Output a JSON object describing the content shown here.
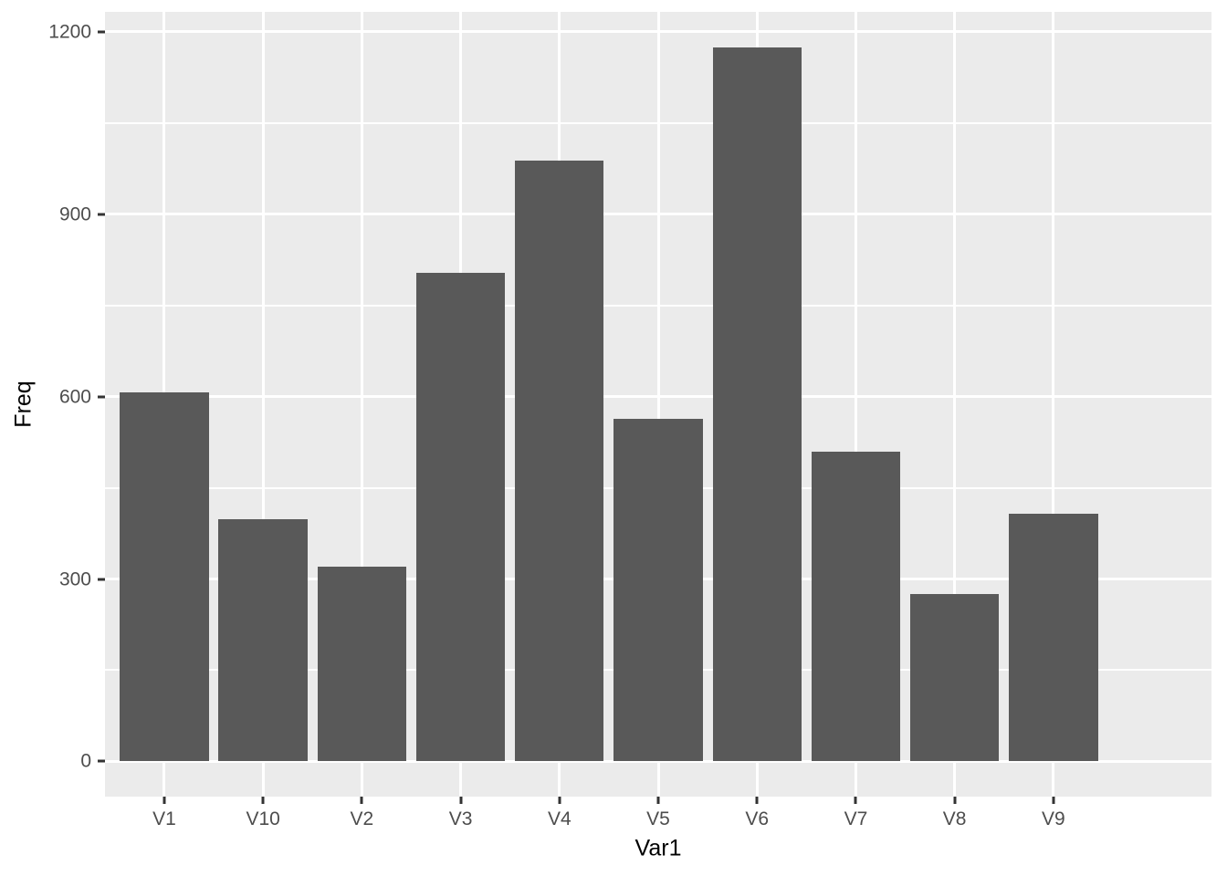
{
  "chart_data": {
    "type": "bar",
    "title": "",
    "categories": [
      "V1",
      "V10",
      "V2",
      "V3",
      "V4",
      "V5",
      "V6",
      "V7",
      "V8",
      "V9"
    ],
    "values": [
      607,
      399,
      321,
      803,
      989,
      563,
      1174,
      510,
      276,
      408
    ],
    "xlabel": "Var1",
    "ylabel": "Freq",
    "y_ticks": [
      0,
      300,
      600,
      900,
      1200
    ],
    "y_tick_labels": [
      "0",
      "300",
      "600",
      "900",
      "1200"
    ],
    "y_minor": [
      150,
      450,
      750,
      1050
    ],
    "ylim": [
      -58,
      1233
    ],
    "grid": true,
    "legend_position": "none",
    "colors": {
      "bar_fill": "#595959",
      "panel_bg": "#EBEBEB",
      "grid_major": "#FFFFFF",
      "grid_minor": "#FFFFFF",
      "tick_label": "#4D4D4D",
      "axis_title": "#000000",
      "tick_mark": "#333333",
      "page_bg": "#FFFFFF"
    }
  }
}
